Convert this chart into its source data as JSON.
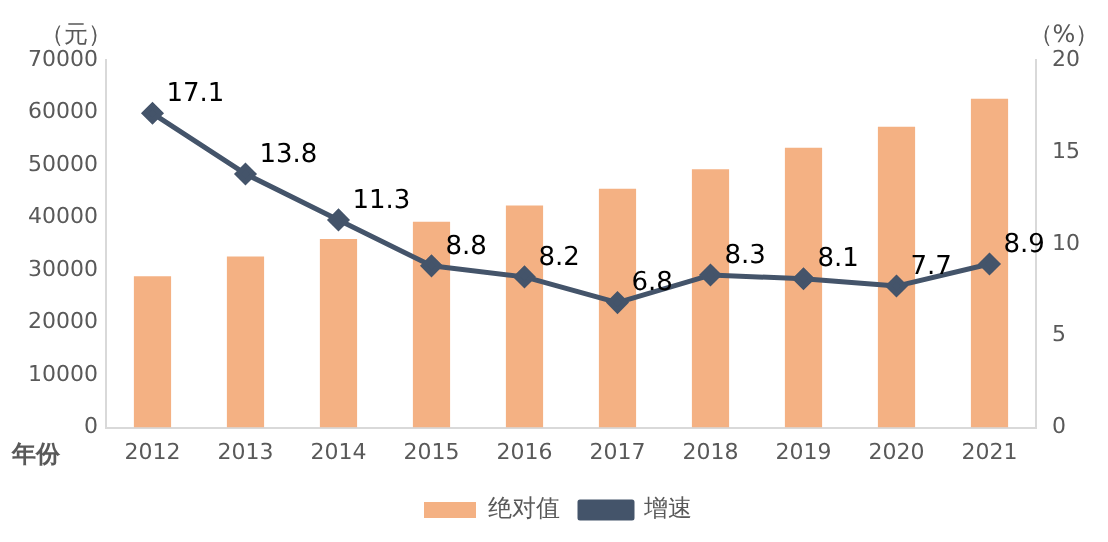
{
  "chart_data": {
    "type": "bar",
    "xlabel": "年份",
    "ylabel": "（元）",
    "y2label": "（%）",
    "categories": [
      "2012",
      "2013",
      "2014",
      "2015",
      "2016",
      "2017",
      "2018",
      "2019",
      "2020",
      "2021"
    ],
    "series": [
      {
        "name": "绝对值",
        "color": "#f4b183",
        "values": [
          28800,
          32600,
          35900,
          39200,
          42300,
          45500,
          49200,
          53300,
          57300,
          62600
        ]
      },
      {
        "name": "增速",
        "type": "line",
        "axis": "y2",
        "color": "#44546a",
        "marker": "diamond",
        "values": [
          17.1,
          13.8,
          11.3,
          8.8,
          8.2,
          6.8,
          8.3,
          8.1,
          7.7,
          8.9
        ],
        "value_labels": [
          "17.1",
          "13.8",
          "11.3",
          "8.8",
          "8.2",
          "6.8",
          "8.3",
          "8.1",
          "7.7",
          "8.9"
        ]
      }
    ],
    "ylim": [
      0,
      70000
    ],
    "yticks": [
      0,
      10000,
      20000,
      30000,
      40000,
      50000,
      60000,
      70000
    ],
    "y2lim": [
      0,
      20
    ],
    "y2ticks": [
      0,
      5,
      10,
      15,
      20
    ],
    "grid": false,
    "legend": "bottom"
  }
}
